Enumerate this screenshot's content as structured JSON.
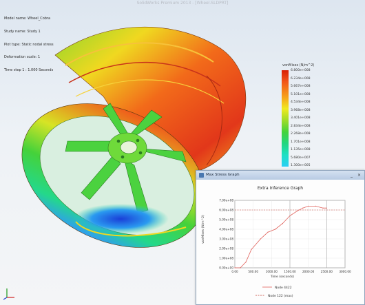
{
  "app_title": "SolidWorks Premium 2013 - [Wheel.SLDPRT]",
  "info_lines": [
    "Model name: Wheel_Cobra",
    "Study name: Study 1",
    "Plot type: Static nodal stress",
    "Deformation scale: 1",
    "Time step 1 : 1.000 Seconds"
  ],
  "legend": {
    "unit": "vonMises (N/m^2)",
    "ticks": [
      "6.800e+008",
      "6.234e+008",
      "5.667e+008",
      "5.101e+008",
      "4.534e+008",
      "3.968e+008",
      "3.401e+008",
      "2.834e+008",
      "2.268e+008",
      "1.701e+008",
      "1.135e+008",
      "5.680e+007",
      "1.300e+005"
    ],
    "colors": {
      "max": "#d81e05",
      "mid": "#f0ea20",
      "min": "#2acff5"
    }
  },
  "chart_window": {
    "title": "Max Stress Graph",
    "buttons": {
      "minimize": "_",
      "close": "×"
    }
  },
  "chart_data": {
    "type": "line",
    "title": "Extra Inference Graph",
    "xlabel": "Time (seconds)",
    "ylabel": "vonMises (N/m^2)",
    "x_ticks": [
      "0.00",
      "500.00",
      "1000.00",
      "1500.00",
      "2000.00",
      "2500.00",
      "3000.00"
    ],
    "y_ticks": [
      "0.00e+00",
      "1.00e+08",
      "2.00e+08",
      "3.00e+08",
      "4.00e+08",
      "5.00e+08",
      "6.00e+08",
      "7.00e+08"
    ],
    "xlim": [
      0,
      3000
    ],
    "ylim": [
      0,
      700000000
    ],
    "series": [
      {
        "values_x": [
          0,
          150,
          300,
          450,
          700,
          900,
          1100,
          1300,
          1500,
          1700,
          1850,
          2000,
          2200,
          2400,
          2500
        ],
        "values_y": [
          0,
          0,
          60000000,
          190000000,
          300000000,
          370000000,
          400000000,
          460000000,
          540000000,
          590000000,
          620000000,
          640000000,
          640000000,
          620000000,
          620000000
        ],
        "color": "#e0605a"
      }
    ],
    "limit_line": {
      "y": 600000000,
      "color": "#c0392b"
    },
    "reference_x": [
      1500,
      2500
    ],
    "legend_entries": [
      "Node 4422",
      "Node 122 (max)"
    ],
    "grid": true
  }
}
